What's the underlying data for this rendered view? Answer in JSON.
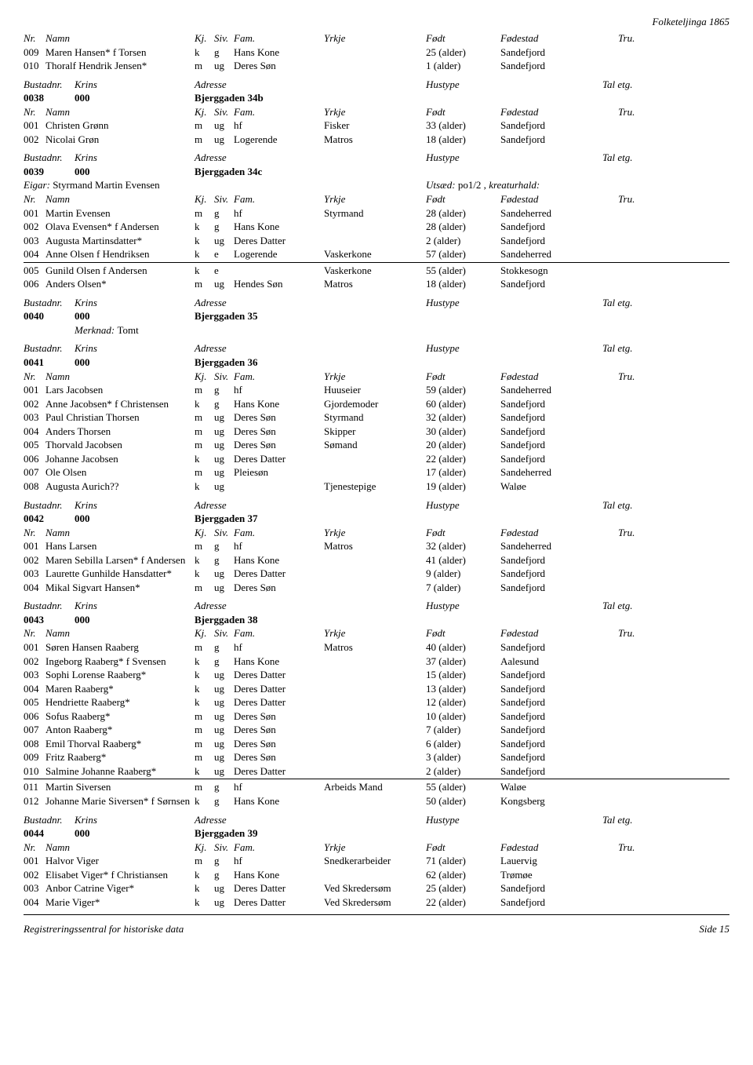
{
  "header_right": "Folketeljinga 1865",
  "col": {
    "nr": "Nr.",
    "namn": "Namn",
    "kj": "Kj.",
    "siv": "Siv.",
    "fam": "Fam.",
    "yrkje": "Yrkje",
    "fodd": "Født",
    "fodestad": "Fødestad",
    "tru": "Tru."
  },
  "bcol": {
    "bustadnr": "Bustadnr.",
    "krins": "Krins",
    "adresse": "Adresse",
    "hustype": "Hustype",
    "taletg": "Tal etg."
  },
  "eigar_lbl": "Eigar:",
  "utsad_lbl": "Utsæd:",
  "kreatur_lbl": "kreaturhald:",
  "merknad_lbl": "Merknad:",
  "footer_left": "Registreringssentral for historiske data",
  "footer_right": "Side 15",
  "pre_rows": [
    {
      "nr": "009",
      "namn": "Maren Hansen* f Torsen",
      "kj": "k",
      "siv": "g",
      "fam": "Hans Kone",
      "yrkje": "",
      "fodd": "25 (alder)",
      "fodestad": "Sandefjord"
    },
    {
      "nr": "010",
      "namn": "Thoralf Hendrik Jensen*",
      "kj": "m",
      "siv": "ug",
      "fam": "Deres Søn",
      "yrkje": "",
      "fodd": "1 (alder)",
      "fodestad": "Sandefjord"
    }
  ],
  "sections": [
    {
      "bustad": {
        "nr": "0038",
        "krins": "000",
        "adresse": "Bjerggaden 34b"
      },
      "rows": [
        {
          "nr": "001",
          "namn": "Christen Grønn",
          "kj": "m",
          "siv": "ug",
          "fam": "hf",
          "yrkje": "Fisker",
          "fodd": "33 (alder)",
          "fodestad": "Sandefjord"
        },
        {
          "nr": "002",
          "namn": "Nicolai Grøn",
          "kj": "m",
          "siv": "ug",
          "fam": "Logerende",
          "yrkje": "Matros",
          "fodd": "18 (alder)",
          "fodestad": "Sandefjord"
        }
      ]
    },
    {
      "bustad": {
        "nr": "0039",
        "krins": "000",
        "adresse": "Bjerggaden 34c"
      },
      "eigar": "Styrmand Martin Evensen",
      "utsad": "po1/2 ,",
      "rows": [
        {
          "nr": "001",
          "namn": "Martin Evensen",
          "kj": "m",
          "siv": "g",
          "fam": "hf",
          "yrkje": "Styrmand",
          "fodd": "28 (alder)",
          "fodestad": "Sandeherred"
        },
        {
          "nr": "002",
          "namn": "Olava Evensen* f Andersen",
          "kj": "k",
          "siv": "g",
          "fam": "Hans Kone",
          "yrkje": "",
          "fodd": "28 (alder)",
          "fodestad": "Sandefjord"
        },
        {
          "nr": "003",
          "namn": "Augusta Martinsdatter*",
          "kj": "k",
          "siv": "ug",
          "fam": "Deres Datter",
          "yrkje": "",
          "fodd": "2 (alder)",
          "fodestad": "Sandefjord"
        },
        {
          "nr": "004",
          "namn": "Anne Olsen f Hendriksen",
          "kj": "k",
          "siv": "e",
          "fam": "Logerende",
          "yrkje": "Vaskerkone",
          "fodd": "57 (alder)",
          "fodestad": "Sandeherred",
          "hr_after": true
        },
        {
          "nr": "005",
          "namn": "Gunild Olsen f Andersen",
          "kj": "k",
          "siv": "e",
          "fam": "",
          "yrkje": "Vaskerkone",
          "fodd": "55 (alder)",
          "fodestad": "Stokkesogn"
        },
        {
          "nr": "006",
          "namn": "Anders Olsen*",
          "kj": "m",
          "siv": "ug",
          "fam": "Hendes Søn",
          "yrkje": "Matros",
          "fodd": "18 (alder)",
          "fodestad": "Sandefjord"
        }
      ]
    },
    {
      "bustad": {
        "nr": "0040",
        "krins": "000",
        "adresse": "Bjerggaden 35"
      },
      "merknad": "Tomt",
      "rows": []
    },
    {
      "bustad": {
        "nr": "0041",
        "krins": "000",
        "adresse": "Bjerggaden 36"
      },
      "rows": [
        {
          "nr": "001",
          "namn": "Lars Jacobsen",
          "kj": "m",
          "siv": "g",
          "fam": "hf",
          "yrkje": "Huuseier",
          "fodd": "59 (alder)",
          "fodestad": "Sandeherred"
        },
        {
          "nr": "002",
          "namn": "Anne Jacobsen* f Christensen",
          "kj": "k",
          "siv": "g",
          "fam": "Hans Kone",
          "yrkje": "Gjordemoder",
          "fodd": "60 (alder)",
          "fodestad": "Sandefjord"
        },
        {
          "nr": "003",
          "namn": "Paul Christian Thorsen",
          "kj": "m",
          "siv": "ug",
          "fam": "Deres Søn",
          "yrkje": "Styrmand",
          "fodd": "32 (alder)",
          "fodestad": "Sandefjord"
        },
        {
          "nr": "004",
          "namn": "Anders Thorsen",
          "kj": "m",
          "siv": "ug",
          "fam": "Deres Søn",
          "yrkje": "Skipper",
          "fodd": "30 (alder)",
          "fodestad": "Sandefjord"
        },
        {
          "nr": "005",
          "namn": "Thorvald Jacobsen",
          "kj": "m",
          "siv": "ug",
          "fam": "Deres Søn",
          "yrkje": "Sømand",
          "fodd": "20 (alder)",
          "fodestad": "Sandefjord"
        },
        {
          "nr": "006",
          "namn": "Johanne Jacobsen",
          "kj": "k",
          "siv": "ug",
          "fam": "Deres Datter",
          "yrkje": "",
          "fodd": "22 (alder)",
          "fodestad": "Sandefjord"
        },
        {
          "nr": "007",
          "namn": "Ole Olsen",
          "kj": "m",
          "siv": "ug",
          "fam": "Pleiesøn",
          "yrkje": "",
          "fodd": "17 (alder)",
          "fodestad": "Sandeherred"
        },
        {
          "nr": "008",
          "namn": "Augusta Aurich??",
          "kj": "k",
          "siv": "ug",
          "fam": "",
          "yrkje": "Tjenestepige",
          "fodd": "19 (alder)",
          "fodestad": "Waløe"
        }
      ]
    },
    {
      "bustad": {
        "nr": "0042",
        "krins": "000",
        "adresse": "Bjerggaden 37"
      },
      "rows": [
        {
          "nr": "001",
          "namn": "Hans Larsen",
          "kj": "m",
          "siv": "g",
          "fam": "hf",
          "yrkje": "Matros",
          "fodd": "32 (alder)",
          "fodestad": "Sandeherred"
        },
        {
          "nr": "002",
          "namn": "Maren Sebilla Larsen* f Andersen",
          "kj": "k",
          "siv": "g",
          "fam": "Hans Kone",
          "yrkje": "",
          "fodd": "41 (alder)",
          "fodestad": "Sandefjord"
        },
        {
          "nr": "003",
          "namn": "Laurette Gunhilde Hansdatter*",
          "kj": "k",
          "siv": "ug",
          "fam": "Deres Datter",
          "yrkje": "",
          "fodd": "9 (alder)",
          "fodestad": "Sandefjord"
        },
        {
          "nr": "004",
          "namn": "Mikal Sigvart Hansen*",
          "kj": "m",
          "siv": "ug",
          "fam": "Deres Søn",
          "yrkje": "",
          "fodd": "7 (alder)",
          "fodestad": "Sandefjord"
        }
      ]
    },
    {
      "bustad": {
        "nr": "0043",
        "krins": "000",
        "adresse": "Bjerggaden 38"
      },
      "rows": [
        {
          "nr": "001",
          "namn": "Søren Hansen Raaberg",
          "kj": "m",
          "siv": "g",
          "fam": "hf",
          "yrkje": "Matros",
          "fodd": "40 (alder)",
          "fodestad": "Sandefjord"
        },
        {
          "nr": "002",
          "namn": "Ingeborg Raaberg* f Svensen",
          "kj": "k",
          "siv": "g",
          "fam": "Hans Kone",
          "yrkje": "",
          "fodd": "37 (alder)",
          "fodestad": "Aalesund"
        },
        {
          "nr": "003",
          "namn": "Sophi Lorense Raaberg*",
          "kj": "k",
          "siv": "ug",
          "fam": "Deres Datter",
          "yrkje": "",
          "fodd": "15 (alder)",
          "fodestad": "Sandefjord"
        },
        {
          "nr": "004",
          "namn": "Maren Raaberg*",
          "kj": "k",
          "siv": "ug",
          "fam": "Deres Datter",
          "yrkje": "",
          "fodd": "13 (alder)",
          "fodestad": "Sandefjord"
        },
        {
          "nr": "005",
          "namn": "Hendriette Raaberg*",
          "kj": "k",
          "siv": "ug",
          "fam": "Deres Datter",
          "yrkje": "",
          "fodd": "12 (alder)",
          "fodestad": "Sandefjord"
        },
        {
          "nr": "006",
          "namn": "Sofus Raaberg*",
          "kj": "m",
          "siv": "ug",
          "fam": "Deres Søn",
          "yrkje": "",
          "fodd": "10 (alder)",
          "fodestad": "Sandefjord"
        },
        {
          "nr": "007",
          "namn": "Anton Raaberg*",
          "kj": "m",
          "siv": "ug",
          "fam": "Deres Søn",
          "yrkje": "",
          "fodd": "7 (alder)",
          "fodestad": "Sandefjord"
        },
        {
          "nr": "008",
          "namn": "Emil Thorval Raaberg*",
          "kj": "m",
          "siv": "ug",
          "fam": "Deres Søn",
          "yrkje": "",
          "fodd": "6 (alder)",
          "fodestad": "Sandefjord"
        },
        {
          "nr": "009",
          "namn": "Fritz Raaberg*",
          "kj": "m",
          "siv": "ug",
          "fam": "Deres Søn",
          "yrkje": "",
          "fodd": "3 (alder)",
          "fodestad": "Sandefjord"
        },
        {
          "nr": "010",
          "namn": "Salmine Johanne Raaberg*",
          "kj": "k",
          "siv": "ug",
          "fam": "Deres Datter",
          "yrkje": "",
          "fodd": "2 (alder)",
          "fodestad": "Sandefjord",
          "hr_after": true
        },
        {
          "nr": "011",
          "namn": "Martin Siversen",
          "kj": "m",
          "siv": "g",
          "fam": "hf",
          "yrkje": "Arbeids Mand",
          "fodd": "55 (alder)",
          "fodestad": "Waløe"
        },
        {
          "nr": "012",
          "namn": "Johanne Marie Siversen* f Sørnsen",
          "kj": "k",
          "siv": "g",
          "fam": "Hans Kone",
          "yrkje": "",
          "fodd": "50 (alder)",
          "fodestad": "Kongsberg"
        }
      ]
    },
    {
      "bustad": {
        "nr": "0044",
        "krins": "000",
        "adresse": "Bjerggaden 39"
      },
      "rows": [
        {
          "nr": "001",
          "namn": "Halvor Viger",
          "kj": "m",
          "siv": "g",
          "fam": "hf",
          "yrkje": "Snedkerarbeider",
          "fodd": "71 (alder)",
          "fodestad": "Lauervig"
        },
        {
          "nr": "002",
          "namn": "Elisabet Viger* f Christiansen",
          "kj": "k",
          "siv": "g",
          "fam": "Hans Kone",
          "yrkje": "",
          "fodd": "62 (alder)",
          "fodestad": "Trømøe"
        },
        {
          "nr": "003",
          "namn": "Anbor Catrine Viger*",
          "kj": "k",
          "siv": "ug",
          "fam": "Deres Datter",
          "yrkje": "Ved Skredersøm",
          "fodd": "25 (alder)",
          "fodestad": "Sandefjord"
        },
        {
          "nr": "004",
          "namn": "Marie Viger*",
          "kj": "k",
          "siv": "ug",
          "fam": "Deres Datter",
          "yrkje": "Ved Skredersøm",
          "fodd": "22 (alder)",
          "fodestad": "Sandefjord"
        }
      ]
    }
  ]
}
